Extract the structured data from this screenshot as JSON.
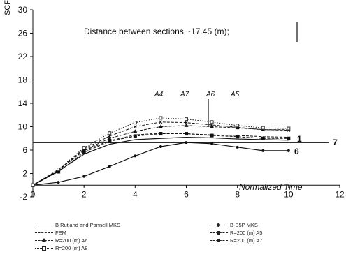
{
  "chart_data": {
    "type": "line",
    "title": "Distance between sections ~17.45 (m);",
    "xlabel": "Normalized Time",
    "ylabel": "SCF",
    "xlim": [
      0,
      12
    ],
    "ylim": [
      -2,
      30
    ],
    "xticks": [
      "0",
      "2",
      "4",
      "6",
      "8",
      "10",
      "12"
    ],
    "yticks": [
      "-2",
      "2",
      "6",
      "10",
      "14",
      "18",
      "22",
      "26",
      "30"
    ],
    "grid": false,
    "reference_line": {
      "y": 7.3,
      "label": "7"
    },
    "top_labels": [
      "A4",
      "A7",
      "A6",
      "A5"
    ],
    "end_labels": [
      "1",
      "6"
    ],
    "series": [
      {
        "name": "B Rutland and Pannell MKS",
        "style": "solid",
        "marker": "none",
        "x": [
          0,
          1,
          2,
          3,
          4,
          5,
          6,
          7,
          8,
          9,
          10
        ],
        "y": [
          0,
          2.4,
          5.3,
          7.0,
          7.8,
          8.0,
          8.2,
          8.1,
          7.9,
          7.8,
          7.7
        ]
      },
      {
        "name": "B-B5P MKS",
        "style": "solid",
        "marker": "circle",
        "x": [
          0,
          1,
          2,
          3,
          4,
          5,
          6,
          7,
          8,
          9,
          10
        ],
        "y": [
          0,
          0.5,
          1.5,
          3.2,
          5.0,
          6.6,
          7.3,
          7.1,
          6.5,
          5.9,
          5.9
        ]
      },
      {
        "name": "FEM",
        "style": "dash",
        "marker": "none",
        "x": [
          0,
          1,
          2,
          3,
          4,
          5,
          6,
          7,
          8,
          9,
          10
        ],
        "y": [
          0,
          2.6,
          5.9,
          7.6,
          8.6,
          8.9,
          8.8,
          8.6,
          8.5,
          8.3,
          8.2
        ]
      },
      {
        "name": "R=200 (m) A5",
        "style": "dash",
        "marker": "square",
        "x": [
          0,
          1,
          2,
          3,
          4,
          5,
          6,
          7,
          8,
          9,
          10
        ],
        "y": [
          0,
          2.3,
          5.6,
          7.5,
          8.4,
          8.8,
          8.8,
          8.5,
          8.3,
          8.0,
          8.0
        ]
      },
      {
        "name": "R=200 (m) A6",
        "style": "dash",
        "marker": "triangle",
        "x": [
          0,
          1,
          2,
          3,
          4,
          5,
          6,
          7,
          8,
          9,
          10
        ],
        "y": [
          0,
          2.5,
          6.0,
          8.0,
          9.2,
          10.0,
          10.2,
          10.0,
          9.8,
          9.5,
          9.5
        ]
      },
      {
        "name": "R=200 (m) A7",
        "style": "dash",
        "marker": "x",
        "x": [
          0,
          1,
          2,
          3,
          4,
          5,
          6,
          7,
          8,
          9,
          10
        ],
        "y": [
          0,
          2.6,
          6.2,
          8.4,
          10.0,
          10.8,
          10.7,
          10.3,
          9.9,
          9.5,
          9.4
        ]
      },
      {
        "name": "R=200 (m) A8",
        "style": "dot",
        "marker": "hollow",
        "x": [
          0,
          1,
          2,
          3,
          4,
          5,
          6,
          7,
          8,
          9,
          10
        ],
        "y": [
          0,
          2.7,
          6.4,
          8.9,
          10.7,
          11.5,
          11.3,
          10.8,
          10.2,
          9.8,
          9.7
        ]
      }
    ]
  }
}
